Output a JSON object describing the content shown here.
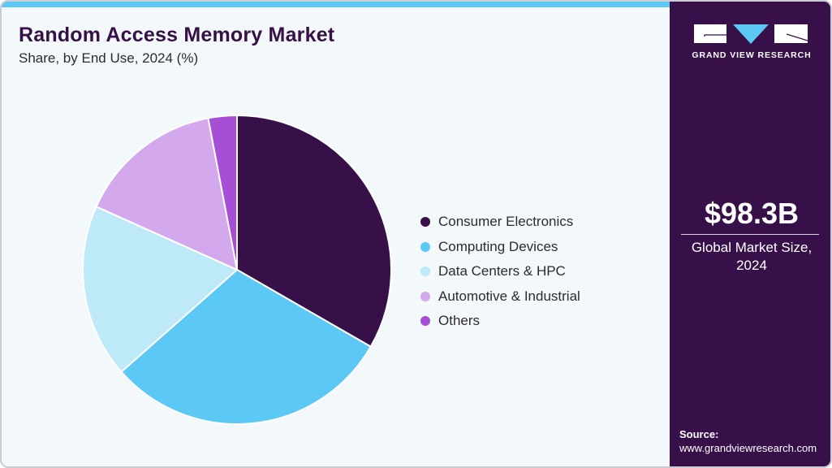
{
  "header": {
    "title": "Random Access Memory Market",
    "subtitle": "Share, by End Use, 2024 (%)"
  },
  "sidebar": {
    "brand": "GRAND VIEW RESEARCH",
    "market_value": "$98.3B",
    "market_label_line1": "Global Market Size,",
    "market_label_line2": "2024",
    "source_label": "Source:",
    "source_url": "www.grandviewresearch.com"
  },
  "colors": {
    "accent_stripe": "#5bc8f5",
    "side_panel": "#37104a",
    "title": "#361047"
  },
  "legend": [
    {
      "label": "Consumer Electronics",
      "color": "#37104a"
    },
    {
      "label": "Computing Devices",
      "color": "#5bc8f5"
    },
    {
      "label": "Data Centers & HPC",
      "color": "#bde9f8"
    },
    {
      "label": "Automotive & Industrial",
      "color": "#d3a8ec"
    },
    {
      "label": "Others",
      "color": "#a64ed6"
    }
  ],
  "chart_data": {
    "type": "pie",
    "title": "Random Access Memory Market",
    "subtitle": "Share, by End Use, 2024 (%)",
    "categories": [
      "Consumer Electronics",
      "Computing Devices",
      "Data Centers & HPC",
      "Automotive & Industrial",
      "Others"
    ],
    "values": [
      33.3,
      30.2,
      18.2,
      15.3,
      3.0
    ],
    "colors": [
      "#37104a",
      "#5bc8f5",
      "#bde9f8",
      "#d3a8ec",
      "#a64ed6"
    ],
    "start_angle_deg": 0,
    "direction": "clockwise",
    "legend_position": "right",
    "annotations": [
      "$98.3B Global Market Size, 2024"
    ]
  }
}
